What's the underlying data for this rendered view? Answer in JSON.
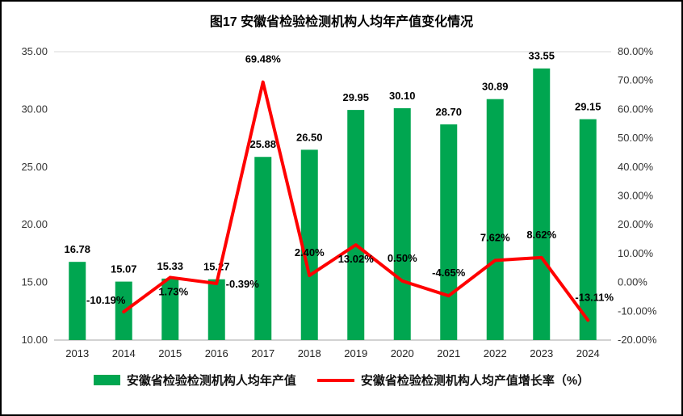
{
  "title": "图17 安徽省检验检测机构人均年产值变化情况",
  "chart_data": {
    "type": "bar+line",
    "categories": [
      "2013",
      "2014",
      "2015",
      "2016",
      "2017",
      "2018",
      "2019",
      "2020",
      "2021",
      "2022",
      "2023",
      "2024"
    ],
    "series": [
      {
        "name": "安徽省检验检测机构人均年产值",
        "type": "bar",
        "color": "#00A650",
        "values": [
          16.78,
          15.07,
          15.33,
          15.27,
          25.88,
          26.5,
          29.95,
          30.1,
          28.7,
          30.89,
          33.55,
          29.15
        ],
        "labels": [
          "16.78",
          "15.07",
          "15.33",
          "15.27",
          "25.88",
          "26.50",
          "29.95",
          "30.10",
          "28.70",
          "30.89",
          "33.55",
          "29.15"
        ]
      },
      {
        "name": "安徽省检验检测机构人均产值增长率（%）",
        "type": "line",
        "color": "#FF0000",
        "values": [
          null,
          -10.19,
          1.73,
          -0.39,
          69.48,
          2.4,
          13.02,
          0.5,
          -4.65,
          7.62,
          8.62,
          -13.11
        ],
        "labels": [
          "",
          "-10.19%",
          "1.73%",
          "-0.39%",
          "69.48%",
          "2.40%",
          "13.02%",
          "0.50%",
          "-4.65%",
          "7.62%",
          "8.62%",
          "-13.11%"
        ],
        "label_offsets": [
          null,
          [
            -22,
            -10
          ],
          [
            4,
            22
          ],
          [
            32,
            5
          ],
          [
            0,
            -24
          ],
          [
            0,
            -24
          ],
          [
            0,
            22
          ],
          [
            0,
            -24
          ],
          [
            0,
            -24
          ],
          [
            0,
            -24
          ],
          [
            0,
            -24
          ],
          [
            8,
            -24
          ]
        ]
      }
    ],
    "left_axis": {
      "min": 10,
      "max": 35,
      "ticks": [
        "35.00",
        "30.00",
        "25.00",
        "20.00",
        "15.00",
        "10.00"
      ]
    },
    "right_axis": {
      "min": -20,
      "max": 80,
      "ticks": [
        "80.00%",
        "70.00%",
        "60.00%",
        "50.00%",
        "40.00%",
        "30.00%",
        "20.00%",
        "10.00%",
        "0.00%",
        "-10.00%",
        "-20.00%"
      ]
    },
    "grid": "off",
    "legend_position": "bottom"
  },
  "legend": [
    {
      "label": "安徽省检验检测机构人均年产值",
      "marker": "rect",
      "color": "#00A650"
    },
    {
      "label": "安徽省检验检测机构人均产值增长率（%）",
      "marker": "line",
      "color": "#FF0000"
    }
  ]
}
